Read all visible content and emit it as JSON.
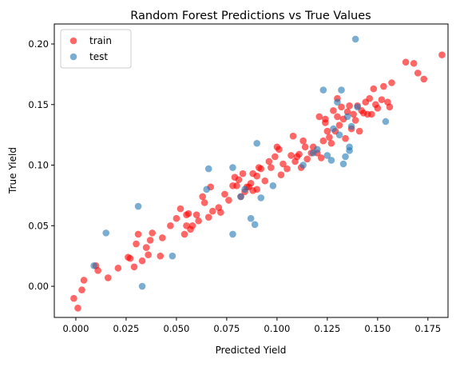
{
  "chart_data": {
    "type": "scatter",
    "title": "Random Forest Predictions vs True Values",
    "x_label": "Predicted Yield",
    "y_label": "True Yield",
    "xlim": [
      -0.0107,
      0.185
    ],
    "ylim": [
      -0.0257,
      0.2165
    ],
    "xticks": [
      {
        "value": 0,
        "label": "0.000"
      },
      {
        "value": 0.025,
        "label": "0.025"
      },
      {
        "value": 0.05,
        "label": "0.050"
      },
      {
        "value": 0.075,
        "label": "0.075"
      },
      {
        "value": 0.1,
        "label": "0.100"
      },
      {
        "value": 0.125,
        "label": "0.125"
      },
      {
        "value": 0.15,
        "label": "0.150"
      },
      {
        "value": 0.175,
        "label": "0.175"
      }
    ],
    "yticks": [
      {
        "value": 0,
        "label": "0.00"
      },
      {
        "value": 0.05,
        "label": "0.05"
      },
      {
        "value": 0.1,
        "label": "0.10"
      },
      {
        "value": 0.15,
        "label": "0.15"
      },
      {
        "value": 0.2,
        "label": "0.20"
      }
    ],
    "legend": "upper left",
    "grid": false,
    "series": [
      {
        "name": "train",
        "color": "#ff0000",
        "x": [
          -0.001,
          0.001,
          0.003,
          0.004,
          0.01,
          0.011,
          0.016,
          0.021,
          0.026,
          0.027,
          0.029,
          0.03,
          0.031,
          0.033,
          0.035,
          0.036,
          0.037,
          0.038,
          0.042,
          0.043,
          0.047,
          0.05,
          0.052,
          0.054,
          0.055,
          0.055,
          0.056,
          0.057,
          0.058,
          0.06,
          0.061,
          0.063,
          0.064,
          0.066,
          0.067,
          0.068,
          0.071,
          0.072,
          0.074,
          0.076,
          0.078,
          0.079,
          0.08,
          0.081,
          0.082,
          0.083,
          0.084,
          0.085,
          0.086,
          0.087,
          0.088,
          0.088,
          0.09,
          0.09,
          0.091,
          0.092,
          0.094,
          0.096,
          0.097,
          0.099,
          0.1,
          0.101,
          0.102,
          0.103,
          0.105,
          0.107,
          0.108,
          0.109,
          0.11,
          0.111,
          0.112,
          0.113,
          0.114,
          0.115,
          0.117,
          0.118,
          0.12,
          0.121,
          0.122,
          0.123,
          0.124,
          0.125,
          0.126,
          0.127,
          0.128,
          0.129,
          0.13,
          0.131,
          0.132,
          0.133,
          0.134,
          0.135,
          0.136,
          0.137,
          0.138,
          0.139,
          0.14,
          0.141,
          0.142,
          0.143,
          0.144,
          0.145,
          0.146,
          0.147,
          0.148,
          0.149,
          0.15,
          0.152,
          0.153,
          0.155,
          0.156,
          0.157,
          0.164,
          0.168,
          0.17,
          0.173,
          0.182,
          0.13,
          0.124
        ],
        "values": [
          -0.01,
          -0.018,
          -0.003,
          0.005,
          0.017,
          0.013,
          0.007,
          0.015,
          0.024,
          0.023,
          0.016,
          0.035,
          0.043,
          0.021,
          0.032,
          0.026,
          0.038,
          0.044,
          0.025,
          0.04,
          0.05,
          0.056,
          0.064,
          0.043,
          0.05,
          0.059,
          0.06,
          0.047,
          0.05,
          0.059,
          0.054,
          0.074,
          0.069,
          0.057,
          0.082,
          0.062,
          0.065,
          0.061,
          0.076,
          0.071,
          0.083,
          0.09,
          0.083,
          0.088,
          0.074,
          0.093,
          0.078,
          0.082,
          0.082,
          0.085,
          0.079,
          0.093,
          0.08,
          0.091,
          0.098,
          0.097,
          0.087,
          0.103,
          0.098,
          0.107,
          0.115,
          0.113,
          0.092,
          0.101,
          0.097,
          0.108,
          0.124,
          0.103,
          0.107,
          0.109,
          0.098,
          0.12,
          0.115,
          0.105,
          0.11,
          0.115,
          0.11,
          0.14,
          0.106,
          0.12,
          0.135,
          0.128,
          0.123,
          0.118,
          0.145,
          0.128,
          0.14,
          0.133,
          0.148,
          0.138,
          0.122,
          0.144,
          0.149,
          0.13,
          0.142,
          0.137,
          0.149,
          0.128,
          0.145,
          0.143,
          0.152,
          0.142,
          0.155,
          0.142,
          0.163,
          0.15,
          0.147,
          0.154,
          0.165,
          0.152,
          0.148,
          0.168,
          0.185,
          0.184,
          0.176,
          0.171,
          0.191,
          0.155,
          0.138
        ]
      },
      {
        "name": "test",
        "color": "#1f77b4",
        "x": [
          0.139,
          0.015,
          0.031,
          0.033,
          0.009,
          0.048,
          0.066,
          0.065,
          0.078,
          0.078,
          0.087,
          0.089,
          0.09,
          0.092,
          0.098,
          0.082,
          0.113,
          0.123,
          0.125,
          0.127,
          0.13,
          0.132,
          0.133,
          0.134,
          0.136,
          0.136,
          0.14,
          0.154,
          0.12,
          0.128,
          0.131,
          0.135,
          0.137,
          0.084,
          0.118
        ],
        "values": [
          0.204,
          0.044,
          0.066,
          0.0,
          0.017,
          0.025,
          0.097,
          0.08,
          0.043,
          0.098,
          0.056,
          0.051,
          0.118,
          0.073,
          0.083,
          0.074,
          0.1,
          0.162,
          0.108,
          0.104,
          0.152,
          0.162,
          0.101,
          0.107,
          0.115,
          0.112,
          0.148,
          0.136,
          0.113,
          0.13,
          0.125,
          0.14,
          0.132,
          0.08,
          0.11
        ]
      }
    ]
  }
}
